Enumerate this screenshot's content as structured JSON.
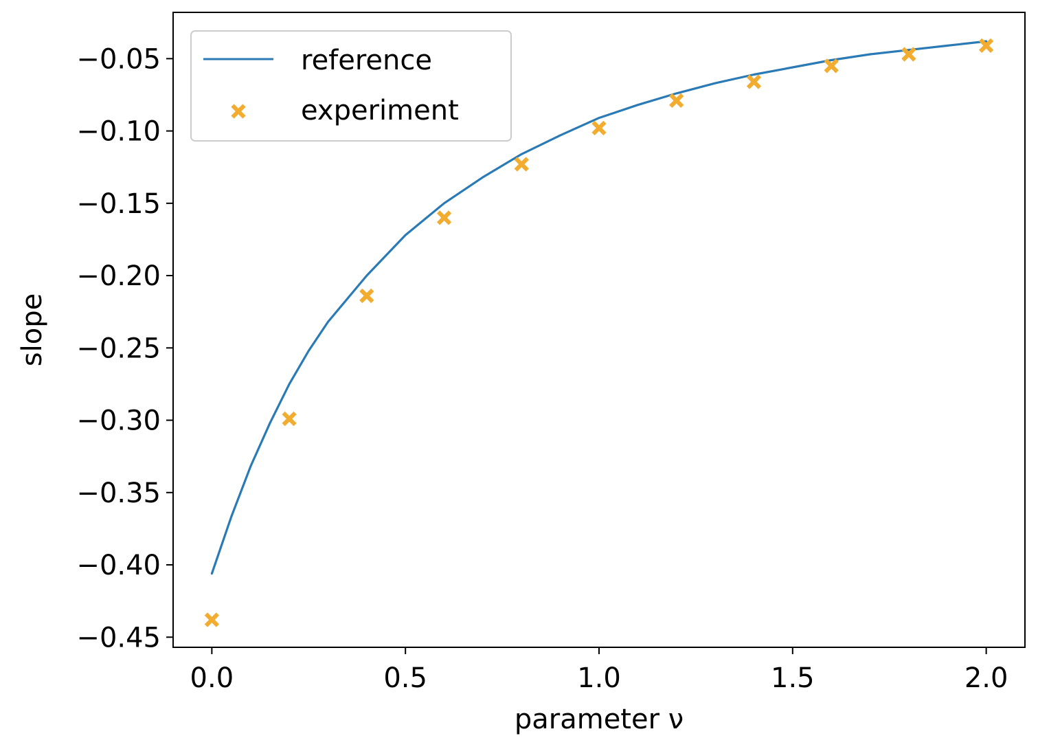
{
  "chart_data": {
    "type": "line",
    "xlabel": "parameter ν",
    "ylabel": "slope",
    "xlim": [
      -0.1,
      2.1
    ],
    "ylim": [
      -0.457,
      -0.018
    ],
    "x_ticks": [
      0.0,
      0.5,
      1.0,
      1.5,
      2.0
    ],
    "x_tick_labels": [
      "0.0",
      "0.5",
      "1.0",
      "1.5",
      "2.0"
    ],
    "y_ticks": [
      -0.45,
      -0.4,
      -0.35,
      -0.3,
      -0.25,
      -0.2,
      -0.15,
      -0.1,
      -0.05
    ],
    "y_tick_labels": [
      "−0.45",
      "−0.40",
      "−0.35",
      "−0.30",
      "−0.25",
      "−0.20",
      "−0.15",
      "−0.10",
      "−0.05"
    ],
    "grid": false,
    "legend_position": "top-left",
    "series": [
      {
        "name": "reference",
        "kind": "line",
        "color": "#2a7ab5",
        "x": [
          0.0,
          0.05,
          0.1,
          0.15,
          0.2,
          0.25,
          0.3,
          0.4,
          0.5,
          0.6,
          0.7,
          0.8,
          0.9,
          1.0,
          1.1,
          1.2,
          1.3,
          1.4,
          1.5,
          1.6,
          1.7,
          1.8,
          1.9,
          2.0
        ],
        "y": [
          -0.406,
          -0.367,
          -0.332,
          -0.302,
          -0.275,
          -0.252,
          -0.232,
          -0.2,
          -0.172,
          -0.15,
          -0.132,
          -0.116,
          -0.103,
          -0.091,
          -0.082,
          -0.074,
          -0.067,
          -0.061,
          -0.056,
          -0.051,
          -0.047,
          -0.044,
          -0.041,
          -0.038
        ]
      },
      {
        "name": "experiment",
        "kind": "scatter",
        "marker": "x",
        "color": "#f2ac30",
        "x": [
          0.0,
          0.2,
          0.4,
          0.6,
          0.8,
          1.0,
          1.2,
          1.4,
          1.6,
          1.8,
          2.0
        ],
        "y": [
          -0.438,
          -0.299,
          -0.214,
          -0.16,
          -0.123,
          -0.098,
          -0.079,
          -0.066,
          -0.055,
          -0.047,
          -0.041
        ]
      }
    ]
  }
}
